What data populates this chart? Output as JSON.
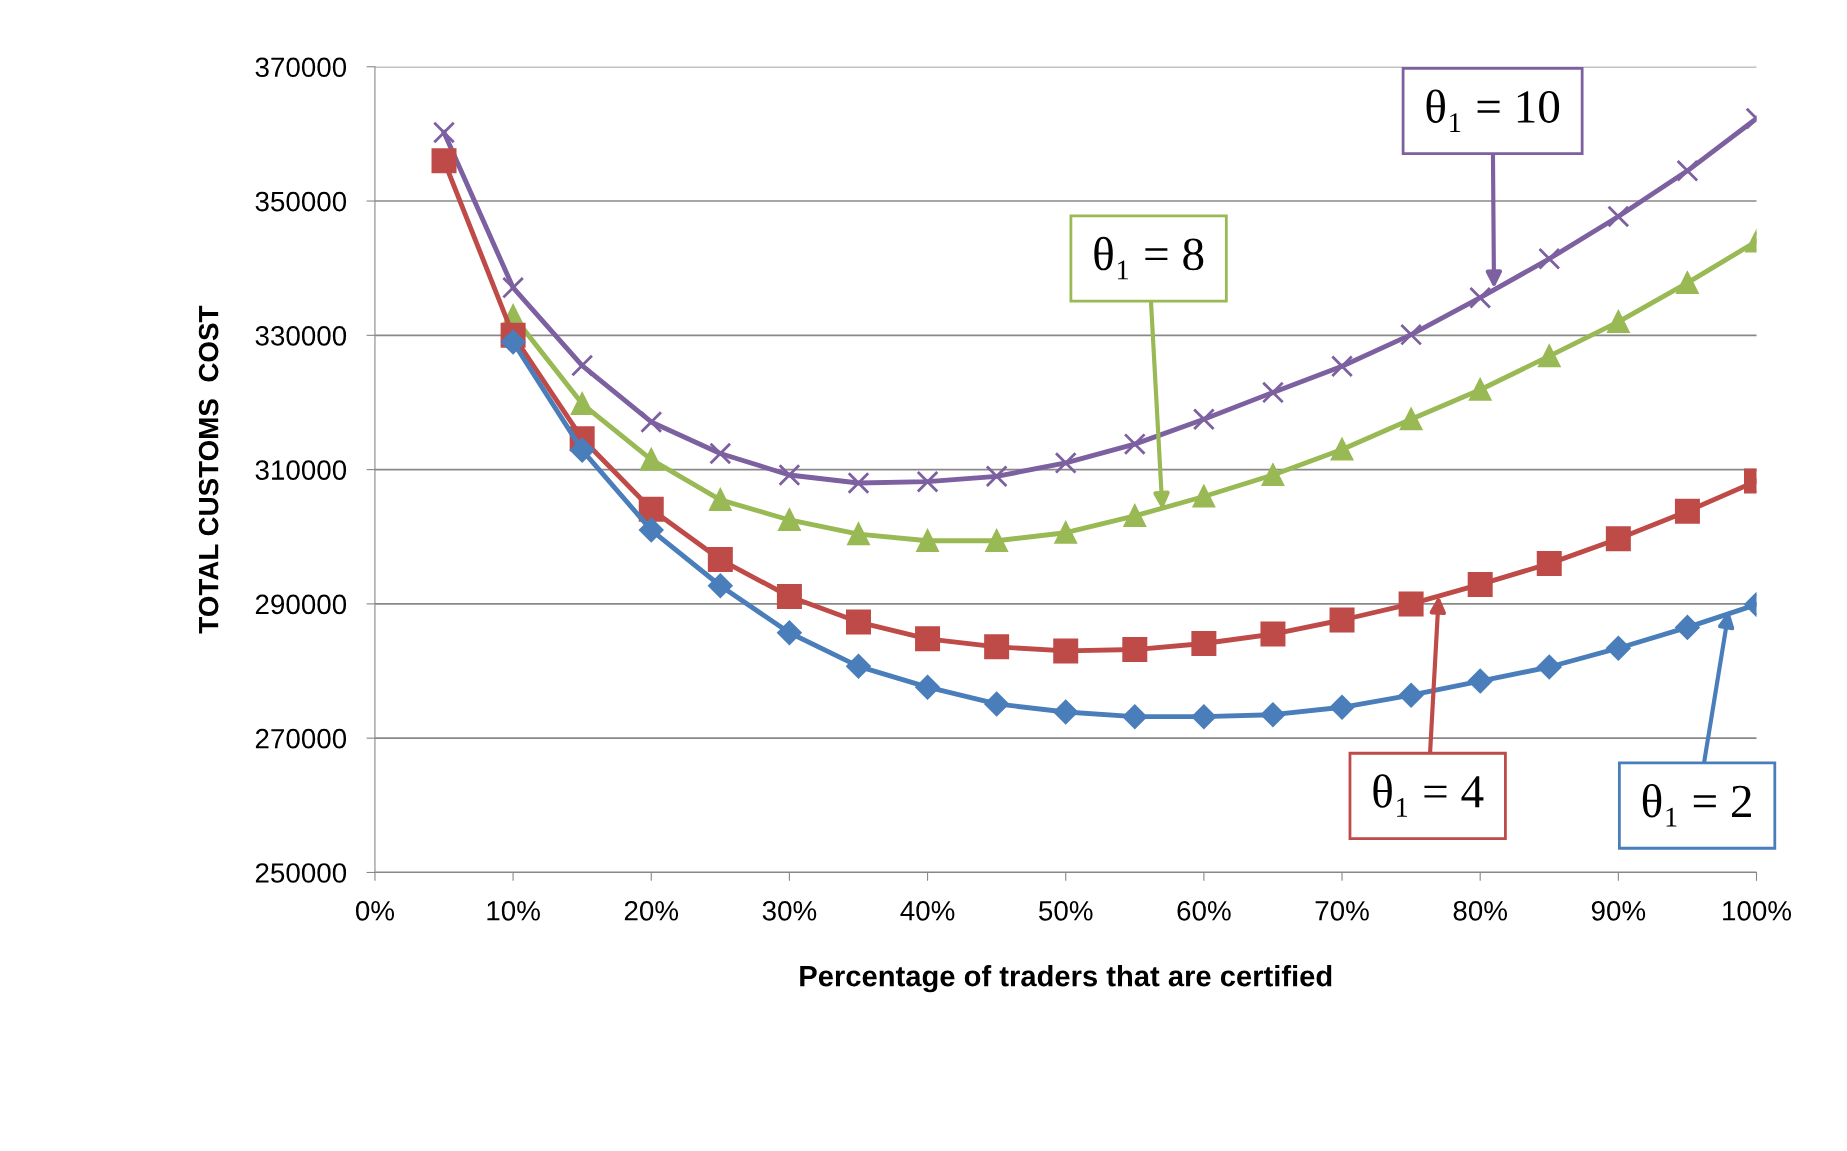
{
  "chart_data": {
    "type": "line",
    "xlabel": "Percentage of traders that are certified",
    "ylabel": "TOTAL CUSTOMS  COST",
    "x": [
      5,
      10,
      15,
      20,
      25,
      30,
      35,
      40,
      45,
      50,
      55,
      60,
      65,
      70,
      75,
      80,
      85,
      90,
      95,
      100
    ],
    "xlim": [
      0,
      100
    ],
    "xticks": [
      {
        "value": 0,
        "label": "0%"
      },
      {
        "value": 10,
        "label": "10%"
      },
      {
        "value": 20,
        "label": "20%"
      },
      {
        "value": 30,
        "label": "30%"
      },
      {
        "value": 40,
        "label": "40%"
      },
      {
        "value": 50,
        "label": "50%"
      },
      {
        "value": 60,
        "label": "60%"
      },
      {
        "value": 70,
        "label": "70%"
      },
      {
        "value": 80,
        "label": "80%"
      },
      {
        "value": 90,
        "label": "90%"
      },
      {
        "value": 100,
        "label": "100%"
      }
    ],
    "ylim": [
      250000,
      370000
    ],
    "yticks": [
      250000,
      270000,
      290000,
      310000,
      330000,
      350000,
      370000
    ],
    "grid": "y",
    "series": [
      {
        "color": "#4a7ebb",
        "marker": "diamond",
        "values": [
          null,
          329000,
          312900,
          301000,
          292700,
          285700,
          280700,
          277600,
          275100,
          273900,
          273200,
          273200,
          273500,
          274600,
          276400,
          278500,
          280600,
          283400,
          286500,
          289900
        ]
      },
      {
        "color": "#be4b48",
        "marker": "square",
        "values": [
          356000,
          330000,
          314600,
          304100,
          296600,
          291100,
          287300,
          284800,
          283600,
          283000,
          283200,
          284100,
          285500,
          287600,
          290000,
          292900,
          296000,
          299700,
          303800,
          308300
        ]
      },
      {
        "color": "#98b954",
        "marker": "triangle",
        "values": [
          null,
          332900,
          319800,
          311500,
          305500,
          302500,
          300400,
          299400,
          299400,
          300600,
          303100,
          306000,
          309200,
          313000,
          317500,
          321900,
          326900,
          332000,
          337800,
          344000
        ]
      },
      {
        "color": "#7d60a0",
        "marker": "cross",
        "values": [
          360200,
          337100,
          325500,
          317100,
          312400,
          309200,
          308000,
          308200,
          309000,
          311000,
          313800,
          317500,
          321500,
          325400,
          330100,
          335600,
          341400,
          347700,
          354500,
          362300
        ]
      }
    ],
    "annotations": [
      {
        "text": "θ₁ = 10",
        "x": 81,
        "y": 337000
      },
      {
        "text": "θ₁ = 8",
        "x": 57,
        "y": 304000
      },
      {
        "text": "θ₁ = 4",
        "x": 77,
        "y": 291200
      },
      {
        "text": "θ₁ = 2",
        "x": 98,
        "y": 289000
      }
    ]
  }
}
